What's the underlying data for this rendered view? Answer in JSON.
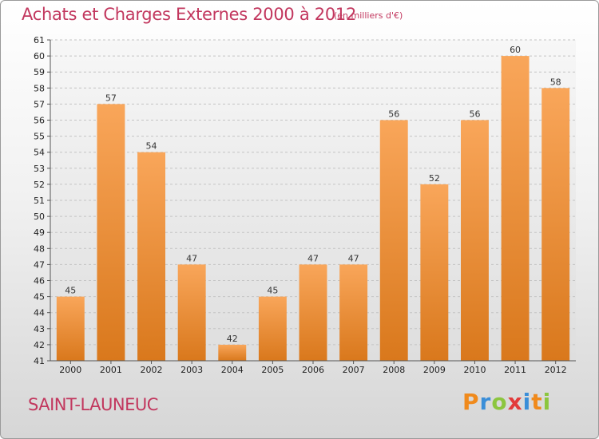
{
  "title": "Achats et Charges Externes 2000 à 2012",
  "subtitle": "(en milliers d'€)",
  "commune": "SAINT-LAUNEUC",
  "logo": {
    "letters": [
      "P",
      "r",
      "o",
      "x",
      "i",
      "t",
      "i"
    ],
    "colors": [
      "#f08a1c",
      "#3a8ed8",
      "#8cc63f",
      "#e23a3a",
      "#3a8ed8",
      "#f08a1c",
      "#8cc63f"
    ]
  },
  "colors": {
    "bar_light": "#f9a65a",
    "bar_dark": "#d9781c",
    "title": "#c2375e"
  },
  "chart_data": {
    "type": "bar",
    "categories": [
      "2000",
      "2001",
      "2002",
      "2003",
      "2004",
      "2005",
      "2006",
      "2007",
      "2008",
      "2009",
      "2010",
      "2011",
      "2012"
    ],
    "values": [
      45,
      57,
      54,
      47,
      42,
      45,
      47,
      47,
      56,
      52,
      56,
      60,
      58
    ],
    "title": "Achats et Charges Externes 2000 à 2012",
    "subtitle": "(en milliers d'€)",
    "xlabel": "",
    "ylabel": "",
    "ylim": [
      41,
      61
    ],
    "yticks": [
      41,
      42,
      43,
      44,
      45,
      46,
      47,
      48,
      49,
      50,
      51,
      52,
      53,
      54,
      55,
      56,
      57,
      58,
      59,
      60,
      61
    ],
    "grid": true,
    "data_labels": true,
    "legend": "none"
  }
}
